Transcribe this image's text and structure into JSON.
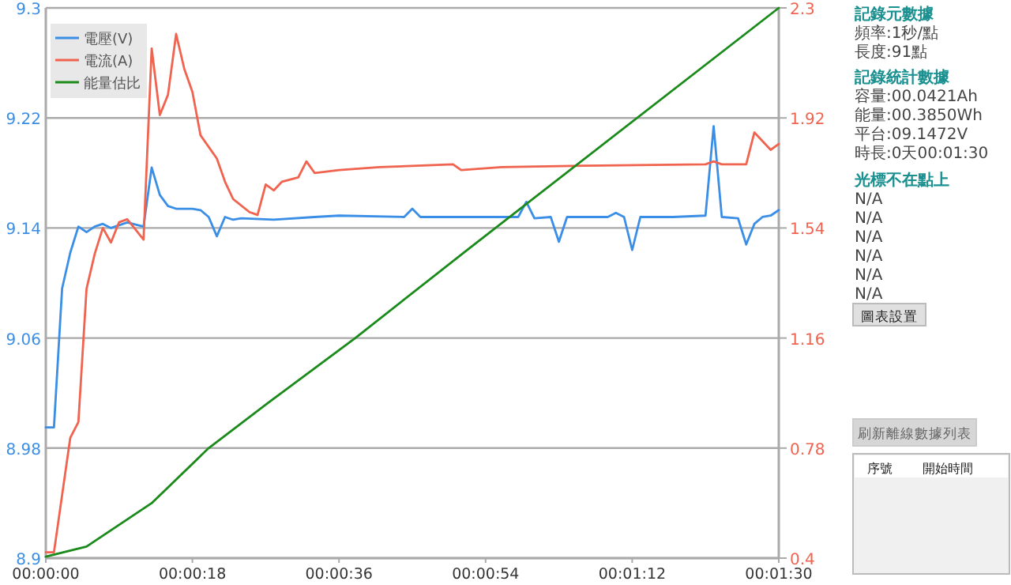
{
  "chart_data": {
    "type": "line",
    "legend": "top left",
    "grid": "y",
    "marker": "none",
    "line_style": "solid",
    "xlim": [
      0,
      90
    ],
    "xticks": [
      {
        "value": 0,
        "label": "00:00:00"
      },
      {
        "value": 18,
        "label": "00:00:18"
      },
      {
        "value": 36,
        "label": "00:00:36"
      },
      {
        "value": 54,
        "label": "00:00:54"
      },
      {
        "value": 72,
        "label": "00:01:12"
      },
      {
        "value": 90,
        "label": "00:01:30"
      }
    ],
    "ylim": [
      8.9,
      9.3
    ],
    "yticks": [
      8.9,
      8.98,
      9.06,
      9.14,
      9.22,
      9.3
    ],
    "y2lim": [
      0.4,
      2.3
    ],
    "y2ticks": [
      0.4,
      0.78,
      1.16,
      1.54,
      1.92,
      2.3
    ],
    "series": [
      {
        "name": "電壓(V)",
        "color": "#3a8ee6",
        "x": [
          0,
          1,
          2,
          3,
          4,
          5,
          6,
          7,
          8,
          10,
          12,
          13,
          14,
          15,
          16,
          18,
          19,
          20,
          21,
          22,
          23,
          24,
          28,
          33,
          36,
          44,
          45,
          46,
          50,
          58,
          59,
          60,
          62,
          63,
          64,
          69,
          70,
          71,
          72,
          73,
          77,
          81,
          82,
          83,
          85,
          86,
          87,
          88,
          89,
          90
        ],
        "values": [
          8.995,
          8.995,
          9.096,
          9.122,
          9.141,
          9.137,
          9.141,
          9.143,
          9.14,
          9.144,
          9.141,
          9.184,
          9.164,
          9.156,
          9.154,
          9.154,
          9.153,
          9.148,
          9.134,
          9.148,
          9.146,
          9.147,
          9.146,
          9.148,
          9.149,
          9.148,
          9.154,
          9.148,
          9.148,
          9.148,
          9.159,
          9.147,
          9.148,
          9.13,
          9.148,
          9.148,
          9.151,
          9.148,
          9.124,
          9.148,
          9.148,
          9.149,
          9.214,
          9.148,
          9.147,
          9.128,
          9.143,
          9.148,
          9.149,
          9.153
        ]
      },
      {
        "name": "電流(A)",
        "color": "#f0634f",
        "axis": "y2",
        "x": [
          0,
          1,
          3,
          4,
          5,
          6,
          7,
          8,
          9,
          10,
          11,
          12,
          13,
          14,
          15,
          16,
          17,
          18,
          19,
          21,
          22,
          23,
          25,
          26,
          27,
          28,
          29,
          31,
          32,
          33,
          36,
          41,
          50,
          51,
          56,
          66,
          81,
          82,
          83,
          86,
          87,
          88,
          89,
          90
        ],
        "values": [
          0.42,
          0.42,
          0.815,
          0.87,
          1.33,
          1.45,
          1.54,
          1.49,
          1.56,
          1.57,
          1.535,
          1.5,
          2.16,
          1.93,
          2.0,
          2.21,
          2.09,
          2.01,
          1.86,
          1.78,
          1.7,
          1.64,
          1.595,
          1.585,
          1.69,
          1.67,
          1.7,
          1.715,
          1.77,
          1.73,
          1.74,
          1.75,
          1.76,
          1.74,
          1.75,
          1.755,
          1.76,
          1.77,
          1.76,
          1.76,
          1.87,
          1.84,
          1.81,
          1.83
        ]
      },
      {
        "name": "能量估比",
        "color": "#1a8a1a",
        "axis": "y2",
        "x": [
          0,
          5,
          13,
          20,
          27,
          38,
          52,
          90
        ],
        "values": [
          0.405,
          0.44,
          0.59,
          0.78,
          0.93,
          1.16,
          1.47,
          2.3
        ]
      }
    ],
    "annotations": [
      "記錄元數據",
      "頻率:1秒/點",
      "長度:91點",
      "記錄統計數據",
      "容量:00.0421Ah",
      "能量:00.3850Wh",
      "平台:09.1472V",
      "時長:0天00:01:30",
      "光標不在點上",
      "N/A",
      "N/A",
      "N/A",
      "N/A",
      "N/A",
      "N/A",
      "圖表設置",
      "刷新離線數據列表",
      "序號",
      "開始時間"
    ]
  }
}
